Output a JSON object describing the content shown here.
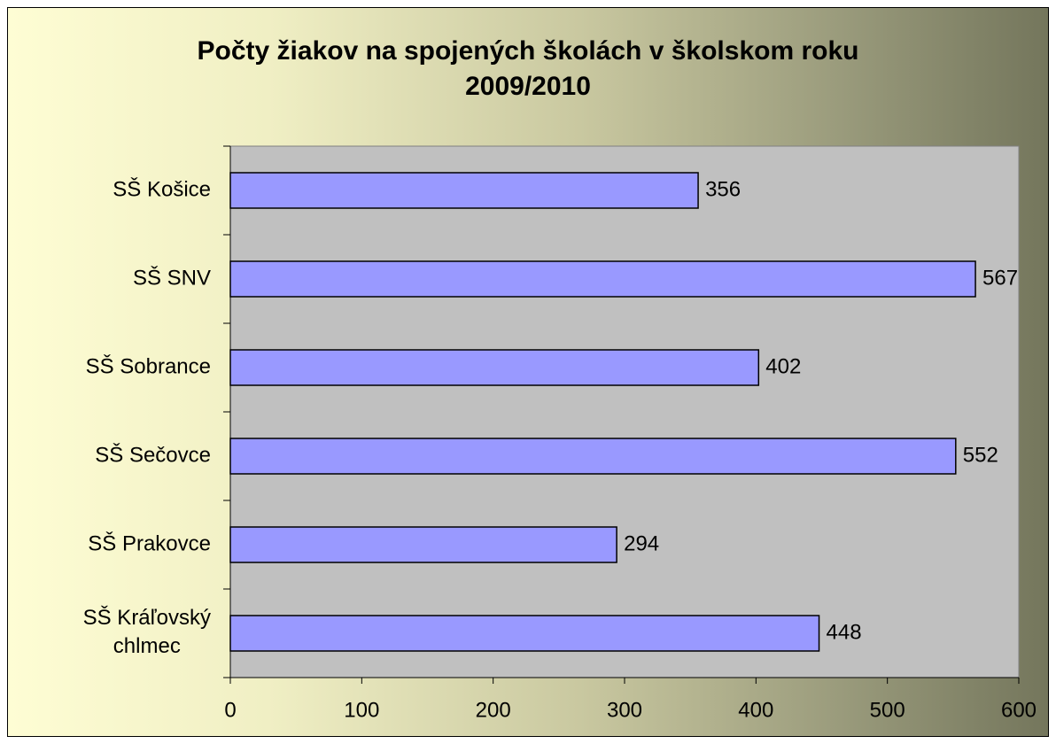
{
  "chart_data": {
    "type": "bar",
    "orientation": "horizontal",
    "title": "Počty žiakov na spojených školách v školskom roku 2009/2010",
    "categories": [
      "SŠ Košice",
      "SŠ SNV",
      "SŠ Sobrance",
      "SŠ Sečovce",
      "SŠ Prakovce",
      "SŠ Kráľovský chlmec"
    ],
    "values": [
      356,
      567,
      402,
      552,
      294,
      448
    ],
    "color": "#9999ff",
    "xlim": [
      0,
      600
    ],
    "xticks": [
      0,
      100,
      200,
      300,
      400,
      500,
      600
    ],
    "grid": false
  }
}
